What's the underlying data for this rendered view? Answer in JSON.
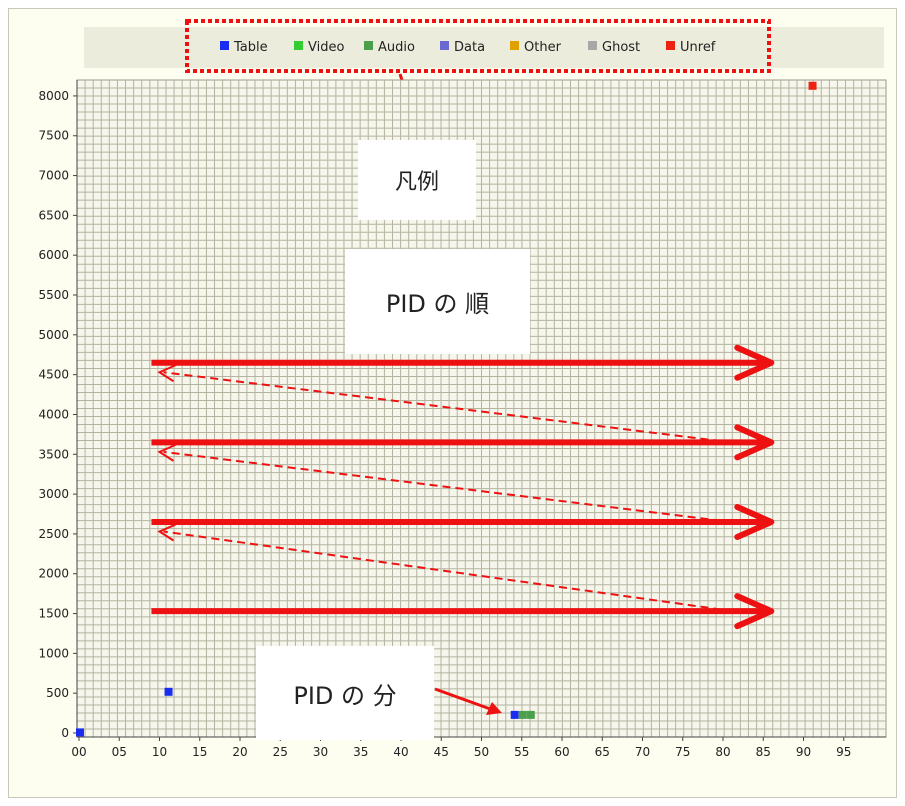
{
  "chart_data": {
    "type": "scatter",
    "legend": {
      "placement": "top",
      "entries": [
        {
          "name": "Table",
          "color": "#1a2cf0"
        },
        {
          "name": "Video",
          "color": "#33cc33"
        },
        {
          "name": "Audio",
          "color": "#4aa04a"
        },
        {
          "name": "Data",
          "color": "#6868d0"
        },
        {
          "name": "Other",
          "color": "#e0a000"
        },
        {
          "name": "Ghost",
          "color": "#a8a8a8"
        },
        {
          "name": "Unref",
          "color": "#ee2211"
        }
      ]
    },
    "x_ticks": [
      "00",
      "05",
      "10",
      "15",
      "20",
      "25",
      "30",
      "35",
      "40",
      "45",
      "50",
      "55",
      "60",
      "65",
      "70",
      "75",
      "80",
      "85",
      "90",
      "95"
    ],
    "y_ticks": [
      "0",
      "500",
      "1000",
      "1500",
      "2000",
      "2500",
      "3000",
      "3500",
      "4000",
      "4500",
      "5000",
      "5500",
      "6000",
      "6500",
      "7000",
      "7500",
      "8000"
    ],
    "xlim": [
      0,
      100
    ],
    "ylim": [
      0,
      8200
    ],
    "grid": true,
    "points": [
      {
        "x": 0,
        "y": 20,
        "category": "Table"
      },
      {
        "x": 11,
        "y": 530,
        "category": "Table"
      },
      {
        "x": 54,
        "y": 240,
        "category": "Table"
      },
      {
        "x": 55,
        "y": 240,
        "category": "Audio"
      },
      {
        "x": 56,
        "y": 240,
        "category": "Audio"
      },
      {
        "x": 91,
        "y": 8140,
        "category": "Unref"
      }
    ]
  },
  "annotations": {
    "legend_label": "凡例",
    "order_label": "PID の 順",
    "distribution_label": "PID の 分",
    "accent_color": "#ee1111",
    "scan_rows_y": [
      4650,
      3650,
      2650,
      1530
    ]
  }
}
